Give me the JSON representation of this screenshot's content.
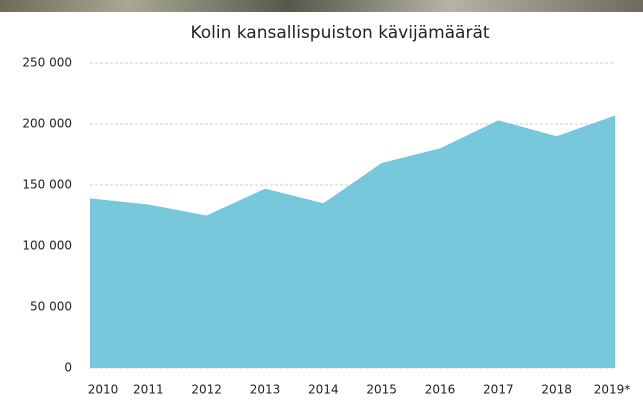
{
  "chart_data": {
    "type": "area",
    "title": "Kolin kansallispuiston kävijämäärät",
    "categories": [
      "2010",
      "2011",
      "2012",
      "2013",
      "2014",
      "2015",
      "2016",
      "2017",
      "2018",
      "2019*"
    ],
    "values": [
      139000,
      134000,
      125000,
      147000,
      135000,
      168000,
      180000,
      203000,
      190000,
      207000
    ],
    "color": "#77c8da",
    "ylim": [
      0,
      250000
    ],
    "yticks": [
      0,
      {
        "value": 50000,
        "label": "50 000"
      },
      {
        "value": 100000,
        "label": "100 000"
      },
      {
        "value": 150000,
        "label": "150 000"
      },
      {
        "value": 200000,
        "label": "200 000"
      },
      {
        "value": 250000,
        "label": "250 000"
      }
    ],
    "grid": true
  }
}
